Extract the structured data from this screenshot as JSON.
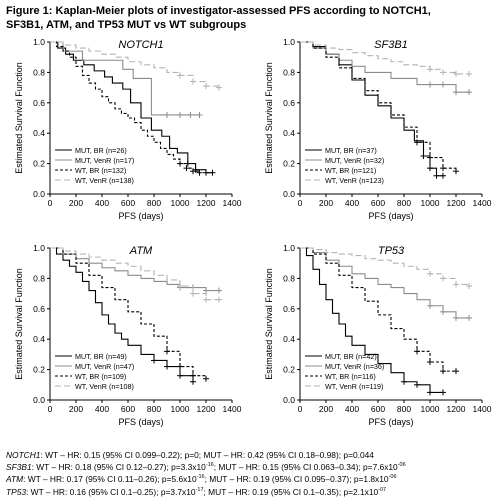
{
  "figure": {
    "title_line1": "Figure 1: Kaplan-Meier plots of investigator-assessed PFS according to NOTCH1,",
    "title_line2": "SF3B1, ATM, and TP53 MUT vs WT subgroups"
  },
  "footnotes": [
    {
      "gene": "NOTCH1",
      "text": ": WT – HR: 0.15 (95% CI 0.099–0.22); p=0; MUT – HR: 0.42 (95% CI 0.18–0.98); p=0.044"
    },
    {
      "gene": "SF3B1",
      "text": ": WT – HR: 0.18 (95% CI 0.12–0.27); p=3.3x10",
      "sup1": "-16",
      "text2": "; MUT – HR: 0.15 (95% CI 0.063–0.34); p=7.6x10",
      "sup2": "-06"
    },
    {
      "gene": "ATM",
      "text": ": WT – HR: 0.17 (95% CI 0.11–0.26); p=5.6x10",
      "sup1": "-16",
      "text2": "; MUT – HR: 0.19 (95% CI 0.095–0.37); p=1.8x10",
      "sup2": "-06"
    },
    {
      "gene": "TP53",
      "text": ": WT – HR: 0.16 (95% CI 0.1–0.25); p=3.7x10",
      "sup1": "-17",
      "text2": "; MUT – HR: 0.19 (95% CI 0.1–0.35); p=2.1x10",
      "sup2": "-07"
    }
  ],
  "chart_data": [
    {
      "type": "line",
      "title": "NOTCH1",
      "xlabel": "PFS (days)",
      "ylabel": "Estimated Survival Function",
      "xlim": [
        0,
        1400
      ],
      "ylim": [
        0,
        1.0
      ],
      "xticks": [
        "0",
        "200",
        "400",
        "600",
        "800",
        "1000",
        "1200",
        "1400"
      ],
      "yticks": [
        "0.0",
        "0.2",
        "0.4",
        "0.6",
        "0.8",
        "1.0"
      ],
      "legend": "bottom-left",
      "series": [
        {
          "name": "MUT, BR (n=26)",
          "color": "#000000",
          "dash": "solid",
          "x": [
            0,
            60,
            120,
            180,
            260,
            340,
            420,
            480,
            560,
            620,
            700,
            780,
            860,
            920,
            980,
            1060,
            1120,
            1200,
            1250
          ],
          "y": [
            1.0,
            0.96,
            0.92,
            0.88,
            0.85,
            0.81,
            0.77,
            0.73,
            0.69,
            0.6,
            0.5,
            0.42,
            0.38,
            0.3,
            0.27,
            0.2,
            0.16,
            0.14,
            0.14
          ]
        },
        {
          "name": "MUT, VenR (n=17)",
          "color": "#8c8c8c",
          "dash": "solid",
          "x": [
            0,
            100,
            250,
            420,
            560,
            640,
            700,
            780,
            900,
            1000,
            1080,
            1150
          ],
          "y": [
            1.0,
            0.94,
            0.88,
            0.88,
            0.82,
            0.76,
            0.76,
            0.52,
            0.52,
            0.52,
            0.52,
            0.52
          ]
        },
        {
          "name": "WT, BR (n=132)",
          "color": "#000000",
          "dash": "3,2",
          "x": [
            0,
            50,
            100,
            150,
            200,
            250,
            300,
            350,
            400,
            450,
            500,
            550,
            600,
            650,
            700,
            750,
            800,
            850,
            900,
            950,
            1000,
            1050,
            1100,
            1150
          ],
          "y": [
            1.0,
            0.97,
            0.94,
            0.9,
            0.84,
            0.78,
            0.73,
            0.69,
            0.64,
            0.6,
            0.56,
            0.53,
            0.5,
            0.47,
            0.42,
            0.38,
            0.34,
            0.3,
            0.26,
            0.23,
            0.2,
            0.17,
            0.15,
            0.14
          ]
        },
        {
          "name": "WT, VenR (n=138)",
          "color": "#b3b3b3",
          "dash": "6,3",
          "x": [
            0,
            100,
            200,
            300,
            400,
            500,
            600,
            700,
            800,
            900,
            1000,
            1100,
            1200,
            1300
          ],
          "y": [
            1.0,
            0.98,
            0.96,
            0.94,
            0.92,
            0.9,
            0.87,
            0.85,
            0.83,
            0.8,
            0.78,
            0.74,
            0.71,
            0.7
          ]
        }
      ]
    },
    {
      "type": "line",
      "title": "SF3B1",
      "xlabel": "PFS (days)",
      "ylabel": "Estimated Survival Function",
      "xlim": [
        0,
        1400
      ],
      "ylim": [
        0,
        1.0
      ],
      "xticks": [
        "0",
        "200",
        "400",
        "600",
        "800",
        "1000",
        "1200",
        "1400"
      ],
      "yticks": [
        "0.0",
        "0.2",
        "0.4",
        "0.6",
        "0.8",
        "1.0"
      ],
      "legend": "bottom-left",
      "series": [
        {
          "name": "MUT, BR (n=37)",
          "color": "#000000",
          "dash": "solid",
          "x": [
            0,
            100,
            200,
            300,
            400,
            500,
            600,
            700,
            800,
            880,
            950,
            1000,
            1050,
            1100
          ],
          "y": [
            1.0,
            0.97,
            0.92,
            0.85,
            0.75,
            0.65,
            0.58,
            0.5,
            0.42,
            0.35,
            0.25,
            0.17,
            0.12,
            0.12
          ]
        },
        {
          "name": "MUT, VenR (n=32)",
          "color": "#8c8c8c",
          "dash": "solid",
          "x": [
            0,
            100,
            200,
            300,
            400,
            500,
            600,
            700,
            800,
            900,
            1000,
            1100,
            1200,
            1300
          ],
          "y": [
            1.0,
            0.96,
            0.92,
            0.88,
            0.84,
            0.8,
            0.8,
            0.76,
            0.76,
            0.72,
            0.72,
            0.72,
            0.67,
            0.67
          ]
        },
        {
          "name": "WT, BR (n=121)",
          "color": "#000000",
          "dash": "3,2",
          "x": [
            0,
            100,
            200,
            300,
            400,
            500,
            600,
            700,
            800,
            900,
            1000,
            1100,
            1200
          ],
          "y": [
            1.0,
            0.96,
            0.9,
            0.83,
            0.76,
            0.68,
            0.6,
            0.52,
            0.44,
            0.34,
            0.24,
            0.17,
            0.15
          ]
        },
        {
          "name": "WT, VenR (n=123)",
          "color": "#b3b3b3",
          "dash": "6,3",
          "x": [
            0,
            100,
            200,
            300,
            400,
            500,
            600,
            700,
            800,
            900,
            1000,
            1100,
            1200,
            1300
          ],
          "y": [
            1.0,
            0.98,
            0.96,
            0.95,
            0.93,
            0.91,
            0.89,
            0.87,
            0.85,
            0.84,
            0.82,
            0.8,
            0.79,
            0.79
          ]
        }
      ]
    },
    {
      "type": "line",
      "title": "ATM",
      "xlabel": "PFS (days)",
      "ylabel": "Estimated Survival Function",
      "xlim": [
        0,
        1400
      ],
      "ylim": [
        0,
        1.0
      ],
      "xticks": [
        "0",
        "200",
        "400",
        "600",
        "800",
        "1000",
        "1200",
        "1400"
      ],
      "yticks": [
        "0.0",
        "0.2",
        "0.4",
        "0.6",
        "0.8",
        "1.0"
      ],
      "legend": "bottom-left",
      "series": [
        {
          "name": "MUT, BR (n=49)",
          "color": "#000000",
          "dash": "solid",
          "x": [
            0,
            50,
            100,
            150,
            200,
            250,
            300,
            350,
            400,
            450,
            500,
            550,
            600,
            700,
            800,
            900,
            1000,
            1100
          ],
          "y": [
            1.0,
            0.96,
            0.92,
            0.88,
            0.84,
            0.78,
            0.72,
            0.64,
            0.56,
            0.5,
            0.44,
            0.4,
            0.36,
            0.3,
            0.26,
            0.22,
            0.16,
            0.12
          ]
        },
        {
          "name": "MUT, VenR (n=47)",
          "color": "#8c8c8c",
          "dash": "solid",
          "x": [
            0,
            100,
            200,
            300,
            400,
            500,
            600,
            700,
            800,
            900,
            1000,
            1100,
            1200,
            1300
          ],
          "y": [
            1.0,
            0.96,
            0.93,
            0.9,
            0.87,
            0.85,
            0.82,
            0.8,
            0.78,
            0.76,
            0.74,
            0.74,
            0.72,
            0.72
          ]
        },
        {
          "name": "WT, BR (n=109)",
          "color": "#000000",
          "dash": "3,2",
          "x": [
            0,
            100,
            200,
            300,
            400,
            500,
            600,
            700,
            800,
            900,
            1000,
            1100,
            1200
          ],
          "y": [
            1.0,
            0.96,
            0.9,
            0.82,
            0.74,
            0.66,
            0.58,
            0.5,
            0.42,
            0.32,
            0.22,
            0.16,
            0.14
          ]
        },
        {
          "name": "WT, VenR (n=108)",
          "color": "#b3b3b3",
          "dash": "6,3",
          "x": [
            0,
            100,
            200,
            300,
            400,
            500,
            600,
            700,
            800,
            900,
            1000,
            1100,
            1200,
            1300
          ],
          "y": [
            1.0,
            0.98,
            0.96,
            0.94,
            0.92,
            0.9,
            0.88,
            0.85,
            0.82,
            0.79,
            0.75,
            0.7,
            0.66,
            0.66
          ]
        }
      ]
    },
    {
      "type": "line",
      "title": "TP53",
      "xlabel": "PFS (days)",
      "ylabel": "Estimated Survival Function",
      "xlim": [
        0,
        1400
      ],
      "ylim": [
        0,
        1.0
      ],
      "xticks": [
        "0",
        "200",
        "400",
        "600",
        "800",
        "1000",
        "1200",
        "1400"
      ],
      "yticks": [
        "0.0",
        "0.2",
        "0.4",
        "0.6",
        "0.8",
        "1.0"
      ],
      "legend": "bottom-left",
      "series": [
        {
          "name": "MUT, BR (n=42)",
          "color": "#000000",
          "dash": "solid",
          "x": [
            0,
            50,
            100,
            150,
            200,
            250,
            300,
            350,
            400,
            500,
            600,
            700,
            800,
            900,
            1000,
            1100
          ],
          "y": [
            1.0,
            0.95,
            0.86,
            0.76,
            0.66,
            0.57,
            0.5,
            0.42,
            0.36,
            0.3,
            0.24,
            0.18,
            0.12,
            0.1,
            0.05,
            0.05
          ]
        },
        {
          "name": "MUT, VenR (n=36)",
          "color": "#8c8c8c",
          "dash": "solid",
          "x": [
            0,
            100,
            200,
            300,
            400,
            500,
            600,
            700,
            800,
            900,
            1000,
            1100,
            1200,
            1300
          ],
          "y": [
            1.0,
            0.97,
            0.92,
            0.88,
            0.83,
            0.8,
            0.76,
            0.74,
            0.7,
            0.66,
            0.62,
            0.58,
            0.54,
            0.54
          ]
        },
        {
          "name": "WT, BR (n=116)",
          "color": "#000000",
          "dash": "3,2",
          "x": [
            0,
            100,
            200,
            300,
            400,
            500,
            600,
            700,
            800,
            900,
            1000,
            1100,
            1200
          ],
          "y": [
            1.0,
            0.96,
            0.9,
            0.82,
            0.74,
            0.65,
            0.56,
            0.47,
            0.4,
            0.32,
            0.25,
            0.19,
            0.19
          ]
        },
        {
          "name": "WT, VenR (n=119)",
          "color": "#b3b3b3",
          "dash": "6,3",
          "x": [
            0,
            100,
            200,
            300,
            400,
            500,
            600,
            700,
            800,
            900,
            1000,
            1100,
            1200,
            1300
          ],
          "y": [
            1.0,
            0.99,
            0.97,
            0.96,
            0.95,
            0.93,
            0.92,
            0.9,
            0.88,
            0.86,
            0.83,
            0.8,
            0.76,
            0.75
          ]
        }
      ]
    }
  ]
}
